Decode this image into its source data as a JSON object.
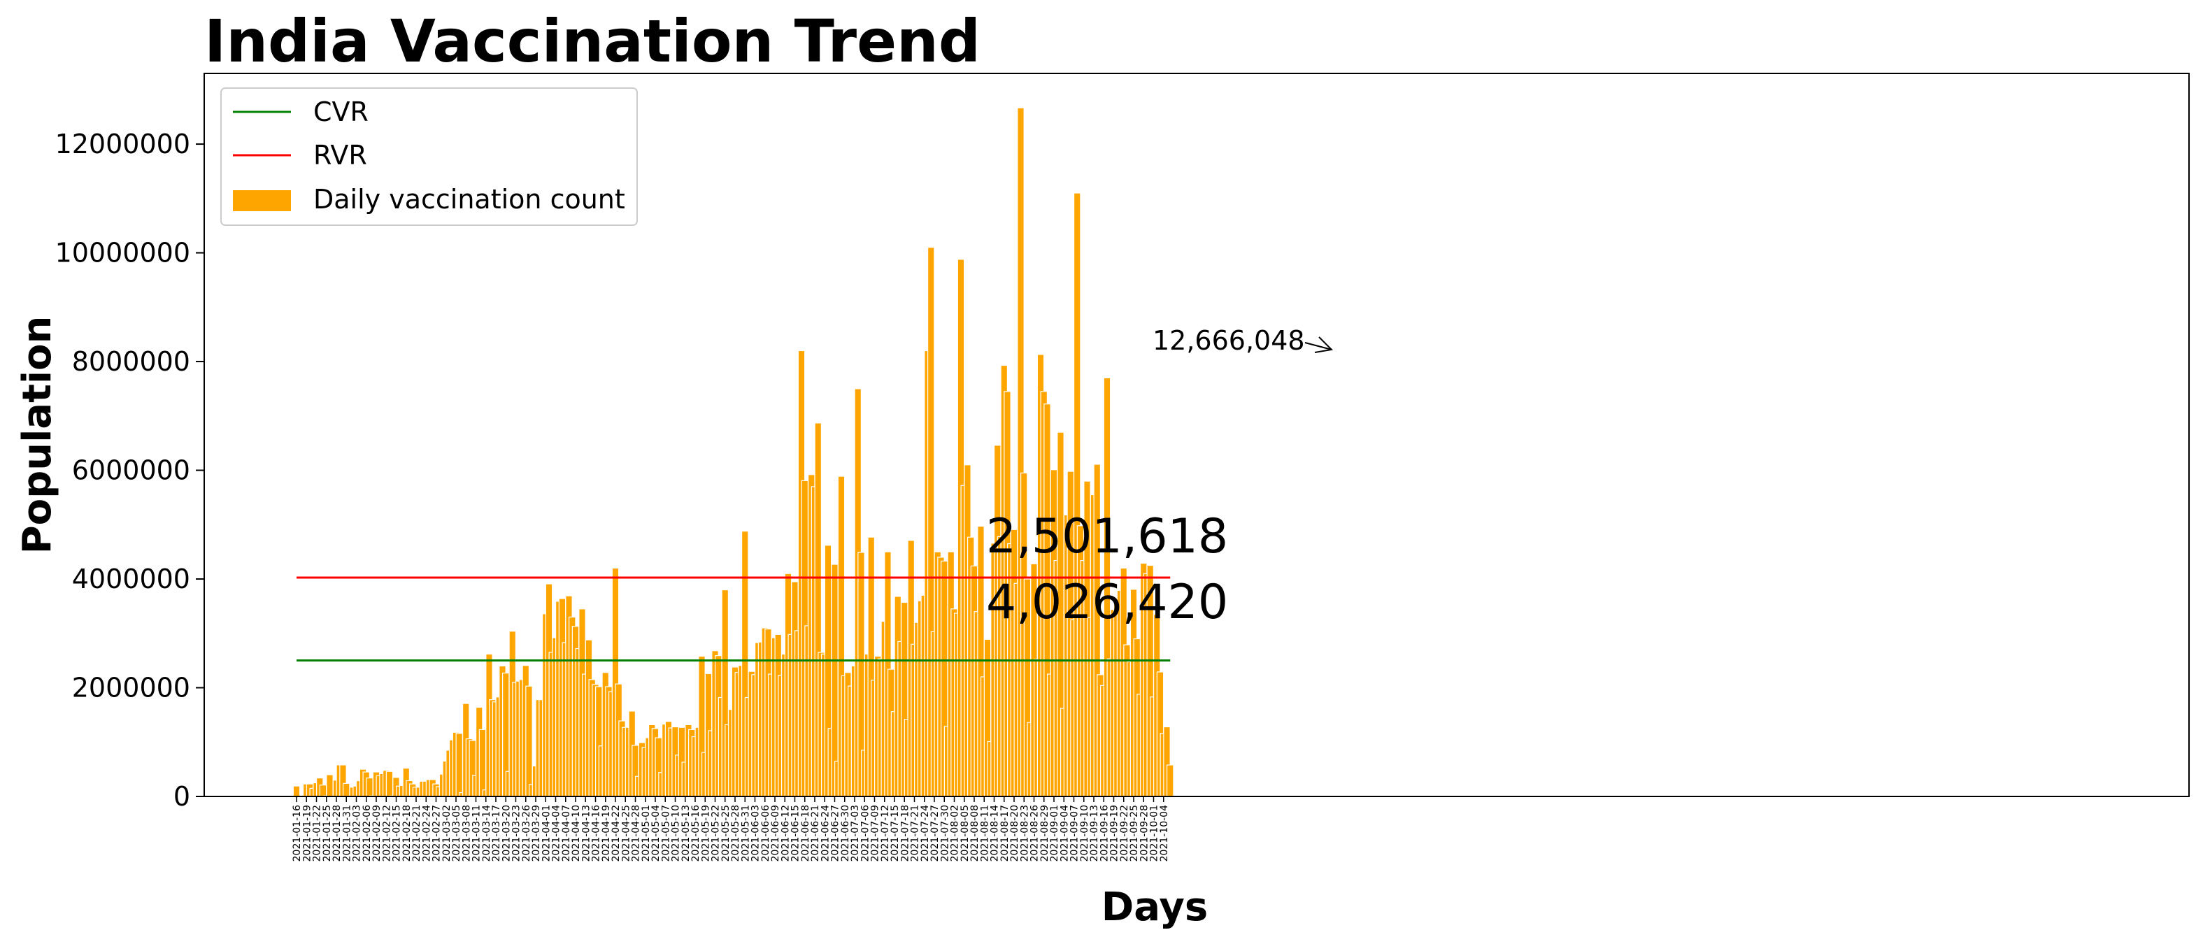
{
  "chart_data": {
    "type": "bar",
    "title": "India Vaccination Trend",
    "xlabel": "Days",
    "ylabel": "Population",
    "ylim": [
      0,
      13300000
    ],
    "yticks": [
      0,
      2000000,
      4000000,
      6000000,
      8000000,
      10000000,
      12000000
    ],
    "ytick_labels": [
      "0",
      "2000000",
      "4000000",
      "6000000",
      "8000000",
      "10000000",
      "12000000"
    ],
    "x_start_date": "2021-01-16",
    "x_tick_step_days": 3,
    "x_tick_format": "YYYY-MM-DD",
    "grid": false,
    "legend": {
      "placement": "top-left",
      "entries": [
        {
          "label": "CVR",
          "kind": "line",
          "color": "#008000"
        },
        {
          "label": "RVR",
          "kind": "line",
          "color": "#ff0000"
        },
        {
          "label": "Daily vaccination count",
          "kind": "bar",
          "color": "#ffa500"
        }
      ]
    },
    "colors": {
      "bar": "#ffa500",
      "cvr": "#008000",
      "rvr": "#ff0000"
    },
    "series": [
      {
        "name": "Daily vaccination count",
        "kind": "bar",
        "values": [
          191181,
          30,
          21000,
          230000,
          230000,
          150000,
          250000,
          340000,
          210000,
          10000,
          400000,
          5000,
          300000,
          580000,
          580000,
          240000,
          6000,
          170000,
          190000,
          290000,
          500000,
          450000,
          340000,
          10000,
          450000,
          380000,
          420000,
          480000,
          460000,
          10000,
          350000,
          190000,
          200000,
          520000,
          290000,
          230000,
          170000,
          170000,
          280000,
          280000,
          310000,
          310000,
          230000,
          180000,
          410000,
          650000,
          850000,
          1040000,
          1180000,
          1160000,
          70000,
          1710000,
          1060000,
          1030000,
          390000,
          1640000,
          1230000,
          120000,
          2620000,
          1780000,
          1740000,
          1830000,
          2400000,
          2270000,
          460000,
          3040000,
          2100000,
          2120000,
          2150000,
          2410000,
          2030000,
          220000,
          560000,
          1780000,
          1780000,
          3360000,
          3910000,
          2650000,
          2920000,
          3590000,
          3640000,
          2830000,
          3690000,
          3300000,
          3130000,
          2720000,
          3450000,
          2250000,
          2880000,
          2150000,
          2060000,
          2020000,
          930000,
          2280000,
          2020000,
          1930000,
          4200000,
          2070000,
          1390000,
          1270000,
          1270000,
          1570000,
          940000,
          370000,
          990000,
          900000,
          1080000,
          1320000,
          1250000,
          1080000,
          440000,
          1330000,
          1380000,
          1260000,
          1280000,
          760000,
          1270000,
          630000,
          1320000,
          1230000,
          1100000,
          1270000,
          2580000,
          810000,
          2260000,
          1210000,
          2680000,
          2590000,
          1820000,
          3800000,
          1320000,
          1600000,
          2380000,
          2280000,
          2410000,
          4880000,
          1820000,
          2300000,
          2240000,
          2830000,
          2840000,
          3100000,
          3080000,
          2250000,
          2920000,
          2980000,
          2230000,
          2620000,
          4100000,
          2980000,
          3950000,
          3050000,
          8200000,
          5810000,
          3140000,
          5920000,
          5700000,
          6870000,
          2650000,
          2620000,
          4620000,
          1250000,
          4270000,
          650000,
          5890000,
          2220000,
          2280000,
          2030000,
          2400000,
          7500000,
          4490000,
          850000,
          2620000,
          4770000,
          2140000,
          2580000,
          2530000,
          3220000,
          4500000,
          2340000,
          1560000,
          3680000,
          2850000,
          3570000,
          1420000,
          4710000,
          2800000,
          3200000,
          3600000,
          3700000,
          8200000,
          10100000,
          3030000,
          4500000,
          4400000,
          4330000,
          1290000,
          4500000,
          3450000,
          3370000,
          9880000,
          5720000,
          6100000,
          4770000,
          4240000,
          3400000,
          4970000,
          2200000,
          2890000,
          1010000,
          4660000,
          6460000,
          4780000,
          7930000,
          7450000,
          4650000,
          4910000,
          3920000,
          12666048,
          5950000,
          4000000,
          1360000,
          4280000,
          2520000,
          8130000,
          7450000,
          7220000,
          2250000,
          6010000,
          4340000,
          6700000,
          1620000,
          5180000,
          5980000,
          3250000,
          11100000,
          4980000,
          4340000,
          5800000,
          3290000,
          5550000,
          6110000,
          2240000,
          2040000,
          7700000,
          2530000,
          3440000,
          3650000,
          3790000,
          4200000,
          2790000,
          2480000,
          3810000,
          2900000,
          1880000,
          4290000,
          4100000,
          4250000,
          1830000,
          3350000,
          2290000,
          1160000,
          1280000,
          580000
        ]
      },
      {
        "name": "CVR",
        "kind": "line",
        "value": 2501618,
        "color": "#008000"
      },
      {
        "name": "RVR",
        "kind": "line",
        "value": 4026420,
        "color": "#ff0000"
      }
    ],
    "annotations": {
      "cvr_value_text": "2,501,618",
      "rvr_value_text": "4,026,420",
      "peak_text": "12,666,048"
    }
  }
}
